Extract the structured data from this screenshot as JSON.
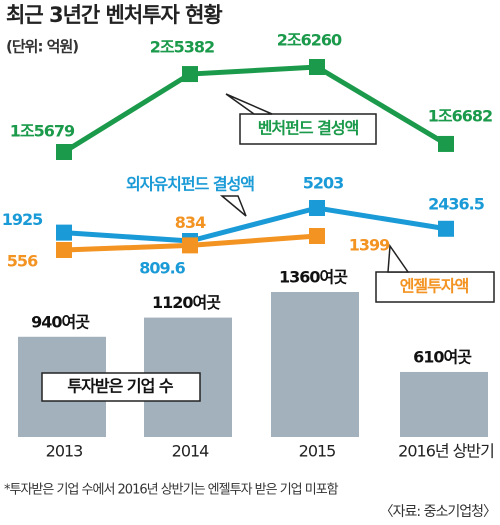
{
  "chart_data": {
    "type": "combo",
    "title": "최근 3년간 벤처투자 현황",
    "subtitle": "(단위: 억원)",
    "categories": [
      "2013",
      "2014",
      "2015",
      "2016년 상반기"
    ],
    "series": [
      {
        "name": "투자받은 기업 수",
        "type": "bar",
        "color": "#a3b1bc",
        "values": [
          940,
          1120,
          1360,
          610
        ],
        "value_labels": [
          "940여곳",
          "1120여곳",
          "1360여곳",
          "610여곳"
        ]
      },
      {
        "name": "벤처펀드 결성액",
        "type": "line",
        "color": "#1a9a4a",
        "values": [
          15679,
          25382,
          26260,
          16682
        ],
        "value_labels": [
          "1조5679",
          "2조5382",
          "2조6260",
          "1조6682"
        ]
      },
      {
        "name": "외자유치펀드 결성액",
        "type": "line",
        "color": "#1a9ad6",
        "values": [
          1925,
          809.6,
          5203,
          2436.5
        ]
      },
      {
        "name": "엔젤투자액",
        "type": "line",
        "color": "#f39322",
        "values": [
          556,
          834,
          1399,
          null
        ]
      }
    ],
    "footnote": "*투자받은 기업 수에서 2016년 상반기는 엔젤투자 받은 기업 미포함",
    "source": "〈자료: 중소기업청〉"
  }
}
